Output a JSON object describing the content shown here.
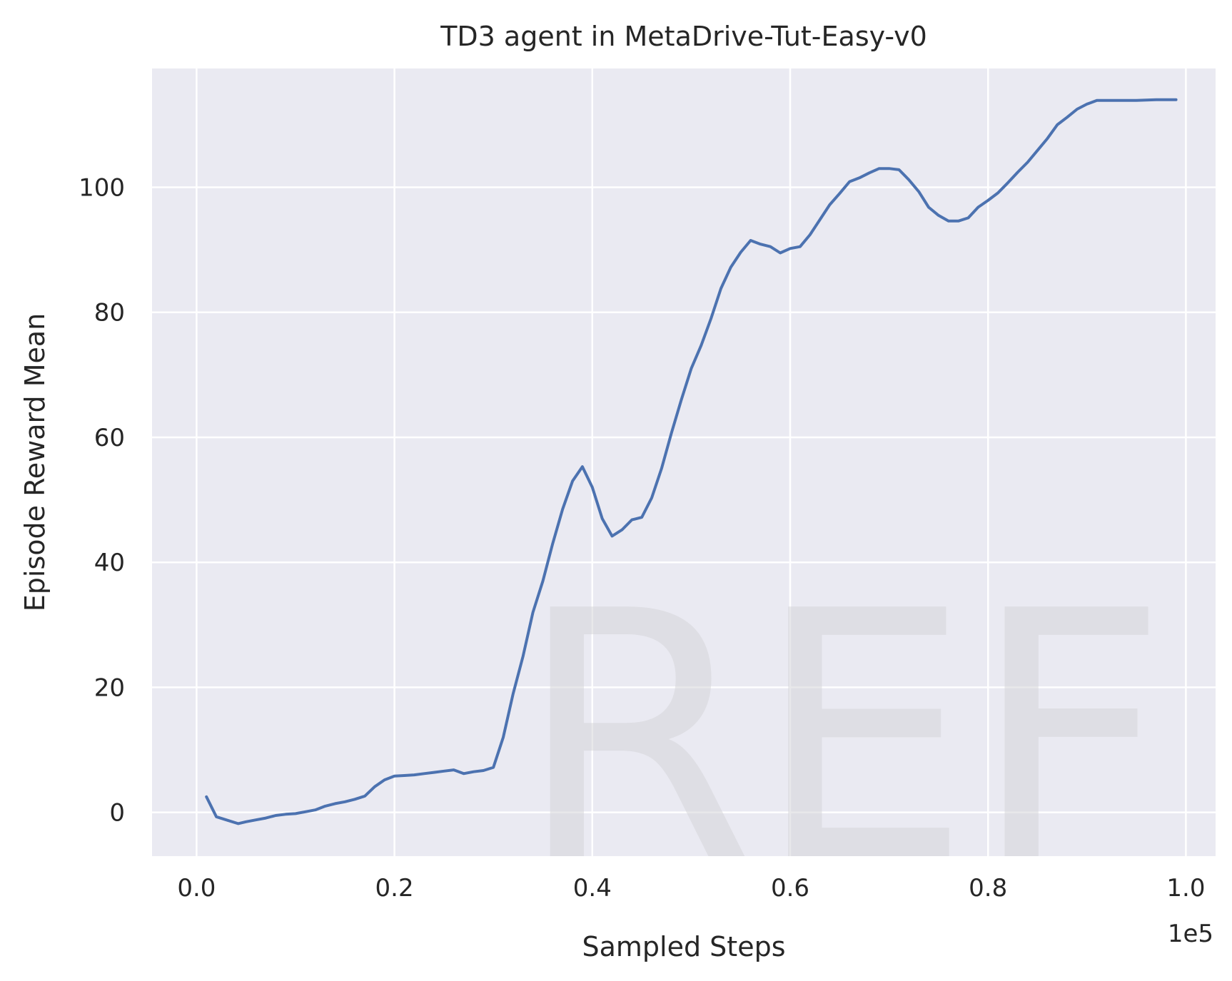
{
  "chart_data": {
    "type": "line",
    "title": "TD3 agent in MetaDrive-Tut-Easy-v0",
    "xlabel": "Sampled Steps",
    "ylabel": "Episode Reward Mean",
    "x_multiplier": "1e5",
    "xlim": [
      -0.045,
      1.03
    ],
    "ylim": [
      -7,
      119
    ],
    "xticks": [
      "0.0",
      "0.2",
      "0.4",
      "0.6",
      "0.8",
      "1.0"
    ],
    "yticks": [
      "0",
      "20",
      "40",
      "60",
      "80",
      "100"
    ],
    "grid": true,
    "background": "#eaeaf2",
    "line_color": "#4c72b0",
    "watermark": "REF",
    "series": [
      {
        "x": [
          0.01,
          0.02,
          0.03,
          0.042,
          0.05,
          0.06,
          0.07,
          0.08,
          0.09,
          0.1,
          0.11,
          0.12,
          0.13,
          0.14,
          0.15,
          0.16,
          0.17,
          0.18,
          0.19,
          0.2,
          0.21,
          0.22,
          0.23,
          0.24,
          0.25,
          0.26,
          0.27,
          0.28,
          0.29,
          0.3,
          0.31,
          0.32,
          0.33,
          0.34,
          0.35,
          0.36,
          0.37,
          0.38,
          0.39,
          0.4,
          0.41,
          0.42,
          0.43,
          0.44,
          0.45,
          0.46,
          0.47,
          0.48,
          0.49,
          0.5,
          0.51,
          0.52,
          0.53,
          0.54,
          0.55,
          0.56,
          0.57,
          0.58,
          0.59,
          0.6,
          0.61,
          0.62,
          0.63,
          0.64,
          0.65,
          0.66,
          0.67,
          0.68,
          0.69,
          0.7,
          0.71,
          0.72,
          0.73,
          0.74,
          0.75,
          0.76,
          0.77,
          0.78,
          0.79,
          0.8,
          0.81,
          0.82,
          0.83,
          0.84,
          0.85,
          0.86,
          0.87,
          0.88,
          0.89,
          0.9,
          0.91,
          0.93,
          0.95,
          0.97,
          0.99
        ],
        "y": [
          2.5,
          -0.7,
          -1.2,
          -1.8,
          -1.5,
          -1.2,
          -0.9,
          -0.5,
          -0.3,
          -0.2,
          0.1,
          0.4,
          1.0,
          1.4,
          1.7,
          2.1,
          2.6,
          4.1,
          5.2,
          5.8,
          5.9,
          6.0,
          6.2,
          6.4,
          6.6,
          6.8,
          6.2,
          6.5,
          6.7,
          7.2,
          12.0,
          19.0,
          25.0,
          32.0,
          37.0,
          43.0,
          48.5,
          53.0,
          55.3,
          52.0,
          47.0,
          44.2,
          45.2,
          46.8,
          47.2,
          50.3,
          55.0,
          60.7,
          66.0,
          71.0,
          74.7,
          79.0,
          83.8,
          87.2,
          89.6,
          91.5,
          90.9,
          90.5,
          89.5,
          90.2,
          90.5,
          92.4,
          94.8,
          97.2,
          99.0,
          100.9,
          101.5,
          102.3,
          103.0,
          103.0,
          102.8,
          101.2,
          99.3,
          96.8,
          95.5,
          94.6,
          94.6,
          95.1,
          96.8,
          97.9,
          99.1,
          100.7,
          102.4,
          104.0,
          105.9,
          107.8,
          110.0,
          111.2,
          112.5,
          113.3,
          113.9,
          113.9,
          113.9,
          114.0,
          114.0
        ]
      }
    ]
  }
}
